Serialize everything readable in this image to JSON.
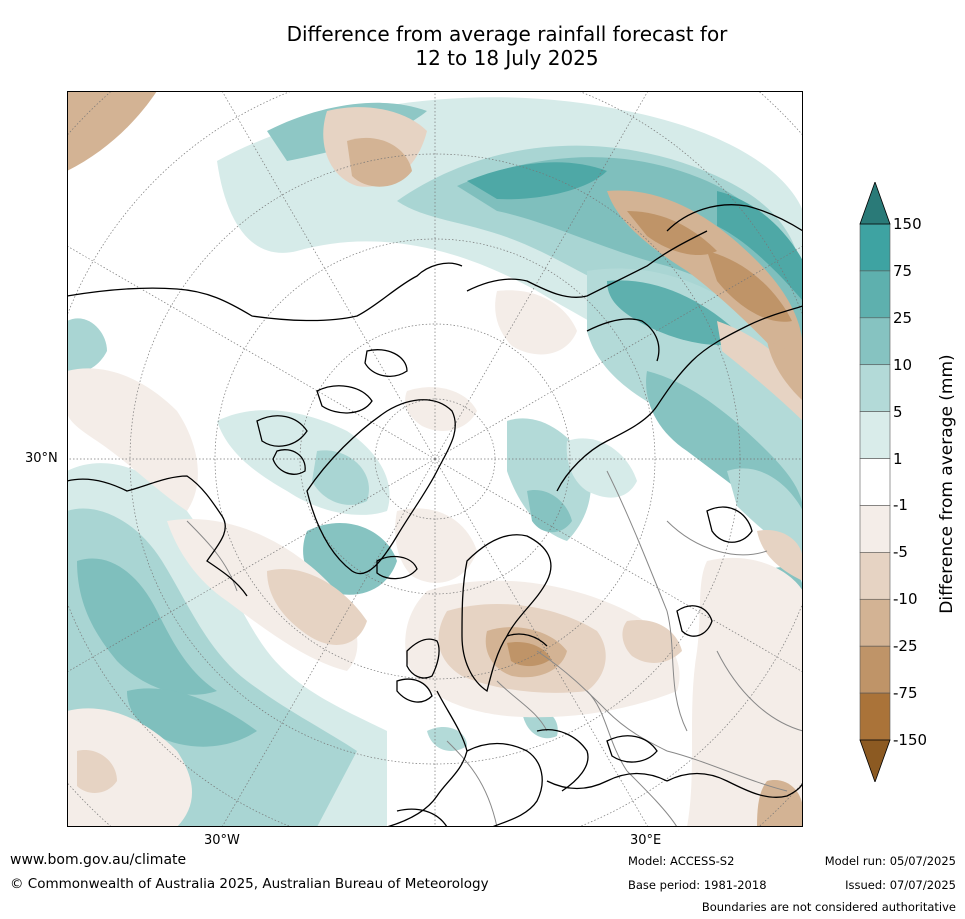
{
  "title_line1": "Difference from average rainfall forecast for",
  "title_line2": "12 to 18 July 2025",
  "map_labels": {
    "lat_30n": "30°N",
    "lon_30w": "30°W",
    "lon_30e": "30°E"
  },
  "colorbar": {
    "label": "Difference from average (mm)",
    "ticks": [
      "150",
      "75",
      "25",
      "10",
      "5",
      "1",
      "-1",
      "-5",
      "-10",
      "-25",
      "-75",
      "-150"
    ],
    "colors": [
      "#2d8a8a",
      "#3ea3a2",
      "#5eb0ae",
      "#86c3c1",
      "#b3dad8",
      "#d9ecea",
      "#ffffff",
      "#f4ede8",
      "#e6d3c3",
      "#d3b394",
      "#bf9468",
      "#aa7339",
      "#8c5a22",
      "#2a7a78"
    ],
    "extend_top_color": "#2a7a78",
    "extend_bottom_color": "#8c5a22"
  },
  "footer": {
    "url": "www.bom.gov.au/climate",
    "copyright": "© Commonwealth of Australia 2025, Australian Bureau of Meteorology",
    "model": "Model: ACCESS-S2",
    "base_period": "Base period: 1981-2018",
    "model_run": "Model run: 05/07/2025",
    "issued": "Issued: 07/07/2025",
    "disclaimer": "Boundaries are not considered authoritative"
  }
}
